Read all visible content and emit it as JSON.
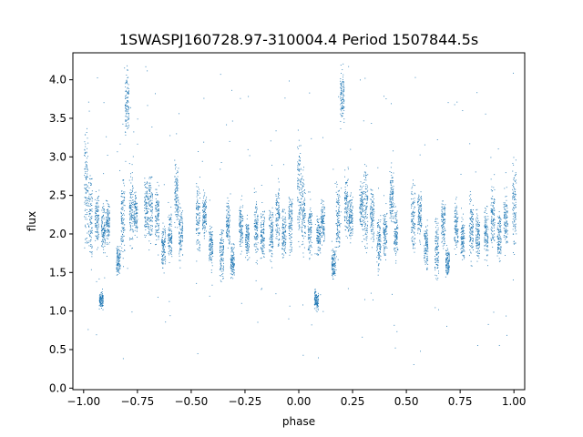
{
  "chart_data": {
    "type": "scatter",
    "title": "1SWASPJ160728.97-310004.4 Period 1507844.5s",
    "xlabel": "phase",
    "ylabel": "flux",
    "xlim": [
      -1.05,
      1.05
    ],
    "ylim": [
      -0.02,
      4.35
    ],
    "xticks": [
      -1.0,
      -0.75,
      -0.5,
      -0.25,
      0.0,
      0.25,
      0.5,
      0.75,
      1.0
    ],
    "xtick_labels": [
      "−1.00",
      "−0.75",
      "−0.50",
      "−0.25",
      "0.00",
      "0.25",
      "0.50",
      "0.75",
      "1.00"
    ],
    "yticks": [
      0.0,
      0.5,
      1.0,
      1.5,
      2.0,
      2.5,
      3.0,
      3.5,
      4.0
    ],
    "ytick_labels": [
      "0.0",
      "0.5",
      "1.0",
      "1.5",
      "2.0",
      "2.5",
      "3.0",
      "3.5",
      "4.0"
    ],
    "grid": false,
    "marker_color": "#1f77b4",
    "series": [
      {
        "clusters": [
          {
            "x": -0.99,
            "y_min": 1.7,
            "y_max": 3.5
          },
          {
            "x": -0.97,
            "y_min": 1.6,
            "y_max": 2.9
          },
          {
            "x": -0.94,
            "y_min": 1.8,
            "y_max": 2.6
          },
          {
            "x": -0.92,
            "y_min": 1.0,
            "y_max": 1.3
          },
          {
            "x": -0.91,
            "y_min": 1.7,
            "y_max": 2.4
          },
          {
            "x": -0.89,
            "y_min": 1.8,
            "y_max": 2.5
          },
          {
            "x": -0.84,
            "y_min": 1.4,
            "y_max": 1.9
          },
          {
            "x": -0.82,
            "y_min": 1.6,
            "y_max": 2.8
          },
          {
            "x": -0.8,
            "y_min": 3.2,
            "y_max": 4.2
          },
          {
            "x": -0.78,
            "y_min": 1.8,
            "y_max": 2.9
          },
          {
            "x": -0.76,
            "y_min": 1.9,
            "y_max": 2.6
          },
          {
            "x": -0.71,
            "y_min": 1.9,
            "y_max": 2.8
          },
          {
            "x": -0.69,
            "y_min": 1.7,
            "y_max": 3.0
          },
          {
            "x": -0.66,
            "y_min": 1.8,
            "y_max": 2.7
          },
          {
            "x": -0.63,
            "y_min": 1.5,
            "y_max": 2.2
          },
          {
            "x": -0.6,
            "y_min": 1.6,
            "y_max": 2.4
          },
          {
            "x": -0.57,
            "y_min": 2.0,
            "y_max": 3.0
          },
          {
            "x": -0.55,
            "y_min": 1.6,
            "y_max": 2.4
          },
          {
            "x": -0.47,
            "y_min": 1.6,
            "y_max": 2.8
          },
          {
            "x": -0.44,
            "y_min": 1.9,
            "y_max": 2.6
          },
          {
            "x": -0.41,
            "y_min": 1.5,
            "y_max": 2.2
          },
          {
            "x": -0.36,
            "y_min": 1.3,
            "y_max": 2.2
          },
          {
            "x": -0.33,
            "y_min": 1.8,
            "y_max": 2.5
          },
          {
            "x": -0.31,
            "y_min": 1.4,
            "y_max": 1.9
          },
          {
            "x": -0.27,
            "y_min": 1.7,
            "y_max": 2.5
          },
          {
            "x": -0.24,
            "y_min": 1.6,
            "y_max": 2.3
          },
          {
            "x": -0.2,
            "y_min": 1.6,
            "y_max": 2.6
          },
          {
            "x": -0.17,
            "y_min": 1.6,
            "y_max": 2.4
          },
          {
            "x": -0.13,
            "y_min": 1.6,
            "y_max": 2.4
          },
          {
            "x": -0.1,
            "y_min": 1.8,
            "y_max": 2.7
          },
          {
            "x": -0.07,
            "y_min": 1.6,
            "y_max": 2.4
          },
          {
            "x": -0.04,
            "y_min": 1.7,
            "y_max": 2.6
          },
          {
            "x": 0.0,
            "y_min": 1.8,
            "y_max": 3.5
          },
          {
            "x": 0.02,
            "y_min": 1.7,
            "y_max": 2.9
          },
          {
            "x": 0.05,
            "y_min": 1.6,
            "y_max": 2.5
          },
          {
            "x": 0.08,
            "y_min": 1.0,
            "y_max": 1.3
          },
          {
            "x": 0.09,
            "y_min": 1.7,
            "y_max": 2.3
          },
          {
            "x": 0.11,
            "y_min": 1.8,
            "y_max": 2.5
          },
          {
            "x": 0.16,
            "y_min": 1.4,
            "y_max": 1.9
          },
          {
            "x": 0.18,
            "y_min": 1.6,
            "y_max": 2.8
          },
          {
            "x": 0.2,
            "y_min": 3.3,
            "y_max": 4.2
          },
          {
            "x": 0.22,
            "y_min": 1.8,
            "y_max": 2.9
          },
          {
            "x": 0.24,
            "y_min": 1.9,
            "y_max": 2.6
          },
          {
            "x": 0.29,
            "y_min": 1.9,
            "y_max": 2.8
          },
          {
            "x": 0.31,
            "y_min": 1.7,
            "y_max": 3.0
          },
          {
            "x": 0.34,
            "y_min": 1.8,
            "y_max": 2.7
          },
          {
            "x": 0.37,
            "y_min": 1.5,
            "y_max": 2.3
          },
          {
            "x": 0.4,
            "y_min": 1.6,
            "y_max": 2.4
          },
          {
            "x": 0.43,
            "y_min": 2.0,
            "y_max": 3.0
          },
          {
            "x": 0.45,
            "y_min": 1.6,
            "y_max": 2.4
          },
          {
            "x": 0.53,
            "y_min": 1.6,
            "y_max": 2.8
          },
          {
            "x": 0.56,
            "y_min": 1.9,
            "y_max": 2.6
          },
          {
            "x": 0.59,
            "y_min": 1.5,
            "y_max": 2.2
          },
          {
            "x": 0.64,
            "y_min": 1.3,
            "y_max": 2.3
          },
          {
            "x": 0.67,
            "y_min": 1.8,
            "y_max": 2.5
          },
          {
            "x": 0.69,
            "y_min": 1.4,
            "y_max": 1.9
          },
          {
            "x": 0.73,
            "y_min": 1.7,
            "y_max": 2.5
          },
          {
            "x": 0.76,
            "y_min": 1.6,
            "y_max": 2.3
          },
          {
            "x": 0.8,
            "y_min": 1.6,
            "y_max": 2.6
          },
          {
            "x": 0.83,
            "y_min": 1.6,
            "y_max": 2.4
          },
          {
            "x": 0.87,
            "y_min": 1.6,
            "y_max": 2.4
          },
          {
            "x": 0.9,
            "y_min": 1.8,
            "y_max": 2.7
          },
          {
            "x": 0.93,
            "y_min": 1.6,
            "y_max": 2.4
          },
          {
            "x": 0.96,
            "y_min": 1.7,
            "y_max": 2.6
          },
          {
            "x": 1.0,
            "y_min": 1.7,
            "y_max": 3.0
          }
        ]
      }
    ]
  }
}
